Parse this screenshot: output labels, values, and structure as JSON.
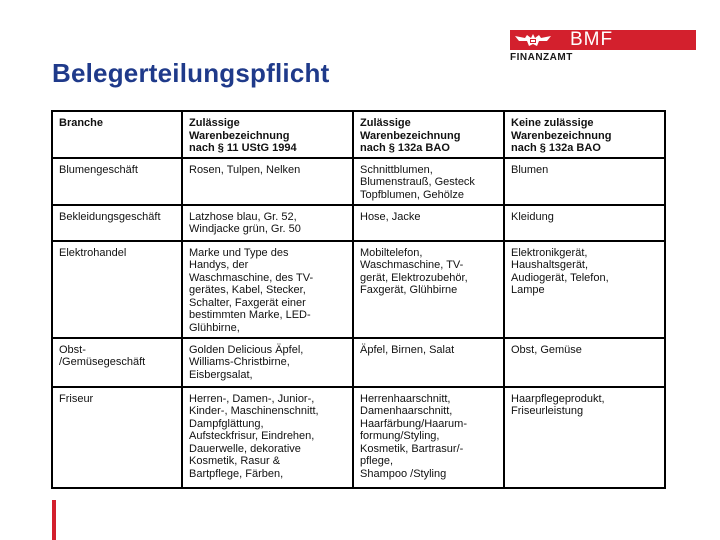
{
  "page": {
    "title": "Belegerteilungspflicht"
  },
  "logo": {
    "brand": "BMF",
    "subtitle": "FINANZAMT",
    "color": "#d3202d"
  },
  "table": {
    "headers": [
      "Branche",
      "Zulässige\nWarenbezeichnung\nnach § 11 UStG 1994",
      "Zulässige\nWarenbezeichnung\nnach § 132a BAO",
      "Keine zulässige\nWarenbezeichnung\nnach § 132a BAO"
    ],
    "rows": [
      [
        "Blumengeschäft",
        "Rosen, Tulpen, Nelken",
        "Schnittblumen,\nBlumenstrauß, Gesteck\nTopfblumen, Gehölze",
        "Blumen"
      ],
      [
        "Bekleidungsgeschäft",
        "Latzhose blau, Gr. 52,\nWindjacke grün, Gr. 50",
        "Hose, Jacke",
        "Kleidung"
      ],
      [
        "Elektrohandel",
        "Marke und Type des\nHandys, der\nWaschmaschine, des TV-\ngerätes, Kabel, Stecker,\nSchalter, Faxgerät einer\nbestimmten Marke, LED-\nGlühbirne,",
        "Mobiltelefon,\nWaschmaschine, TV-\ngerät, Elektrozubehör,\nFaxgerät, Glühbirne",
        "Elektronikgerät,\nHaushaltsgerät,\nAudiogerät, Telefon,\nLampe"
      ],
      [
        "Obst-\n/Gemüsegeschäft",
        "Golden Delicious Äpfel,\nWilliams-Christbirne,\nEisbergsalat,",
        "Äpfel, Birnen, Salat",
        "Obst, Gemüse"
      ],
      [
        "Friseur",
        "Herren-, Damen-, Junior-,\nKinder-, Maschinenschnitt,\nDampfglättung,\nAufsteckfrisur, Eindrehen,\nDauerwelle, dekorative\nKosmetik, Rasur &\nBartpflege, Färben,",
        "Herrenhaarschnitt,\nDamenhaarschnitt,\nHaarfärbung/Haarum-\nformung/Styling,\nKosmetik, Bartrasur/-\npflege,\nShampoo /Styling",
        "Haarpflegeprodukt,\nFriseurleistung"
      ]
    ]
  }
}
